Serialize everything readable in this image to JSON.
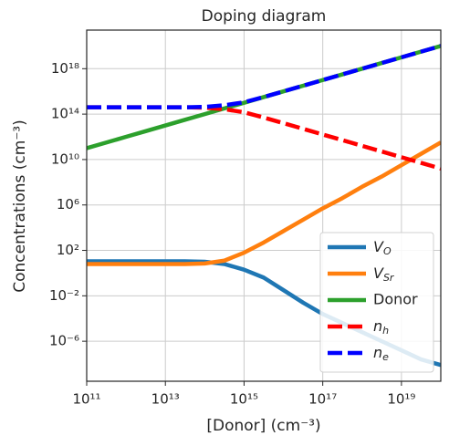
{
  "chart_data": {
    "type": "line",
    "title": "Doping diagram",
    "x_label": "[Donor] (cm⁻³)",
    "y_label": "Concentrations (cm⁻³)",
    "log_x": true,
    "log_y": true,
    "grid": true,
    "legend": "lower right",
    "x": [
      100000000000.0,
      316000000000.0,
      1000000000000.0,
      3160000000000.0,
      10000000000000.0,
      31600000000000.0,
      100000000000000.0,
      316000000000000.0,
      1000000000000000.0,
      3160000000000000.0,
      1e+16,
      3.16e+16,
      1e+17,
      3.16e+17,
      1e+18,
      3.16e+18,
      1e+19,
      3.16e+19,
      1e+20
    ],
    "xlim": [
      100000000000.0,
      1e+20
    ],
    "ylim": [
      3e-10,
      2.5e+21
    ],
    "xticks": [
      {
        "value": 100000000000.0,
        "label": "10¹¹"
      },
      {
        "value": 10000000000000.0,
        "label": "10¹³"
      },
      {
        "value": 1000000000000000.0,
        "label": "10¹⁵"
      },
      {
        "value": 1e+17,
        "label": "10¹⁷"
      },
      {
        "value": 1e+19,
        "label": "10¹⁹"
      }
    ],
    "yticks": [
      {
        "value": 1e-06,
        "label": "10⁻⁶"
      },
      {
        "value": 0.01,
        "label": "10⁻²"
      },
      {
        "value": 100.0,
        "label": "10²"
      },
      {
        "value": 1000000.0,
        "label": "10⁶"
      },
      {
        "value": 10000000000.0,
        "label": "10¹⁰"
      },
      {
        "value": 100000000000000.0,
        "label": "10¹⁴"
      },
      {
        "value": 1e+18,
        "label": "10¹⁸"
      }
    ],
    "series": [
      {
        "name": "VO",
        "color": "#1f77b4",
        "dashed": false,
        "values": [
          11,
          11,
          11,
          11,
          11,
          11,
          10,
          6.3,
          2,
          0.4,
          0.032,
          0.0025,
          0.00025,
          4e-05,
          6.3e-06,
          1e-06,
          1.6e-07,
          2.5e-08,
          8e-09
        ]
      },
      {
        "name": "VSr",
        "color": "#ff7f0e",
        "dashed": false,
        "values": [
          6.3,
          6.3,
          6.3,
          6.3,
          6.3,
          6.3,
          7,
          12.6,
          63,
          500,
          5000,
          50000,
          500000,
          4000000.0,
          40000000.0,
          320000000.0,
          3200000000.0,
          32000000000.0,
          320000000000.0
        ]
      },
      {
        "name": "Donor",
        "color": "#2ca02c",
        "dashed": false,
        "values": [
          100000000000.0,
          316000000000.0,
          1000000000000.0,
          3160000000000.0,
          10000000000000.0,
          31600000000000.0,
          100000000000000.0,
          316000000000000.0,
          1000000000000000.0,
          3160000000000000.0,
          1e+16,
          3.16e+16,
          1e+17,
          3.16e+17,
          1e+18,
          3.16e+18,
          1e+19,
          3.16e+19,
          1e+20
        ]
      },
      {
        "name": "nh",
        "color": "#ff0000",
        "dashed": true,
        "values": [
          400000000000000.0,
          400000000000000.0,
          400000000000000.0,
          400000000000000.0,
          400000000000000.0,
          400000000000000.0,
          370000000000000.0,
          270000000000000.0,
          145000000000000.0,
          50000000000000.0,
          16000000000000.0,
          5100000000000.0,
          1600000000000.0,
          510000000000.0,
          160000000000.0,
          51000000000.0,
          16000000000.0,
          5100000000.0,
          1600000000.0
        ]
      },
      {
        "name": "ne",
        "color": "#0000ff",
        "dashed": true,
        "values": [
          400000000000000.0,
          400000000000000.0,
          400000000000000.0,
          400000000000000.0,
          400000000000000.0,
          400000000000000.0,
          430000000000000.0,
          600000000000000.0,
          1100000000000000.0,
          3200000000000000.0,
          1e+16,
          3.16e+16,
          1e+17,
          3.16e+17,
          1e+18,
          3.16e+18,
          1e+19,
          3.16e+19,
          1e+20
        ]
      }
    ]
  }
}
